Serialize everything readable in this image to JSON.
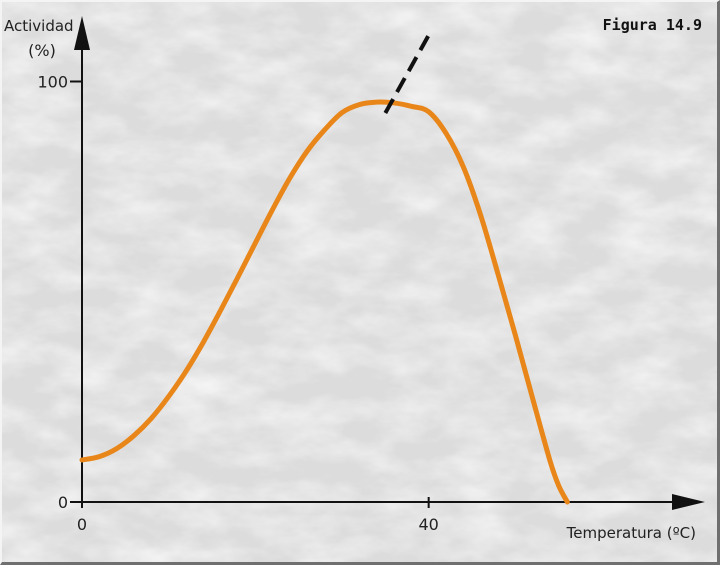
{
  "figure_label": "Figura 14.9",
  "chart_data": {
    "type": "line",
    "ylabel": "Actividad",
    "ylabel_unit": "(%)",
    "xlabel": "Temperatura (ºC)",
    "xticks": [
      "0",
      "40"
    ],
    "yticks": [
      "0",
      "100"
    ],
    "xlim": [
      0,
      72
    ],
    "ylim": [
      0,
      117
    ],
    "grid": false,
    "colors": {
      "curve": "#e8861a",
      "axis": "#111111",
      "extrapolation": "#111111"
    },
    "series": [
      {
        "values_x": [
          0,
          2,
          4,
          6,
          8,
          10,
          12,
          14,
          16,
          18,
          20,
          22,
          24,
          26,
          28,
          30,
          32,
          34,
          36,
          38,
          40,
          42,
          44,
          46,
          48,
          50,
          52,
          54,
          55,
          56
        ],
        "values_y": [
          10,
          10.8,
          12.7,
          15.8,
          19.9,
          25.1,
          31.1,
          38,
          45.6,
          53.5,
          61.6,
          69.6,
          77.1,
          83.5,
          88.5,
          92.6,
          94.5,
          95.1,
          94.9,
          94.1,
          92.8,
          87.7,
          79.7,
          68.2,
          54.2,
          39.7,
          24.6,
          9.8,
          3.9,
          0
        ]
      },
      {
        "style": "dashed",
        "values_x": [
          35,
          40
        ],
        "values_y": [
          92.5,
          111
        ]
      }
    ]
  }
}
